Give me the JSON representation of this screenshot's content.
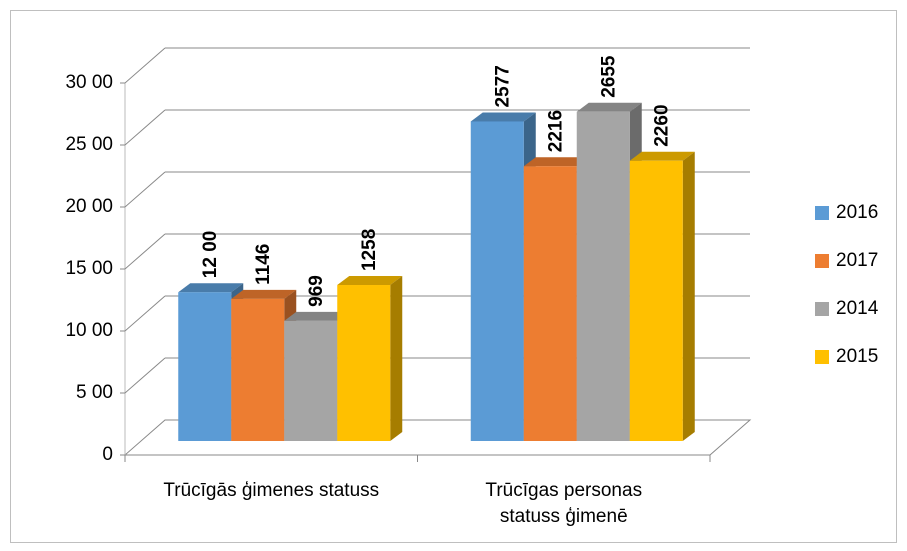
{
  "chart_data": {
    "type": "bar3d",
    "categories": [
      "Trūcīgās ģimenes statuss",
      "Trūcīgas personas statuss ģimenē"
    ],
    "series": [
      {
        "name": "2016",
        "color": "#5b9bd5",
        "values": [
          1200,
          2577
        ],
        "value_labels": [
          "12 00",
          "2577"
        ]
      },
      {
        "name": "2017",
        "color": "#ed7d31",
        "values": [
          1146,
          2216
        ]
      },
      {
        "name": "2014",
        "color": "#a5a5a5",
        "values": [
          969,
          2655
        ]
      },
      {
        "name": "2015",
        "color": "#ffc000",
        "values": [
          1258,
          2260
        ]
      }
    ],
    "ylim": [
      0,
      3000
    ],
    "yticks": [
      0,
      {
        "value": 500,
        "label": "5 00"
      },
      {
        "value": 1000,
        "label": "10 00"
      },
      {
        "value": 1500,
        "label": "15 00"
      },
      {
        "value": 2000,
        "label": "20 00"
      },
      {
        "value": 2500,
        "label": "25 00"
      },
      {
        "value": 3000,
        "label": "30 00"
      }
    ],
    "grid": true,
    "legend": "right"
  }
}
